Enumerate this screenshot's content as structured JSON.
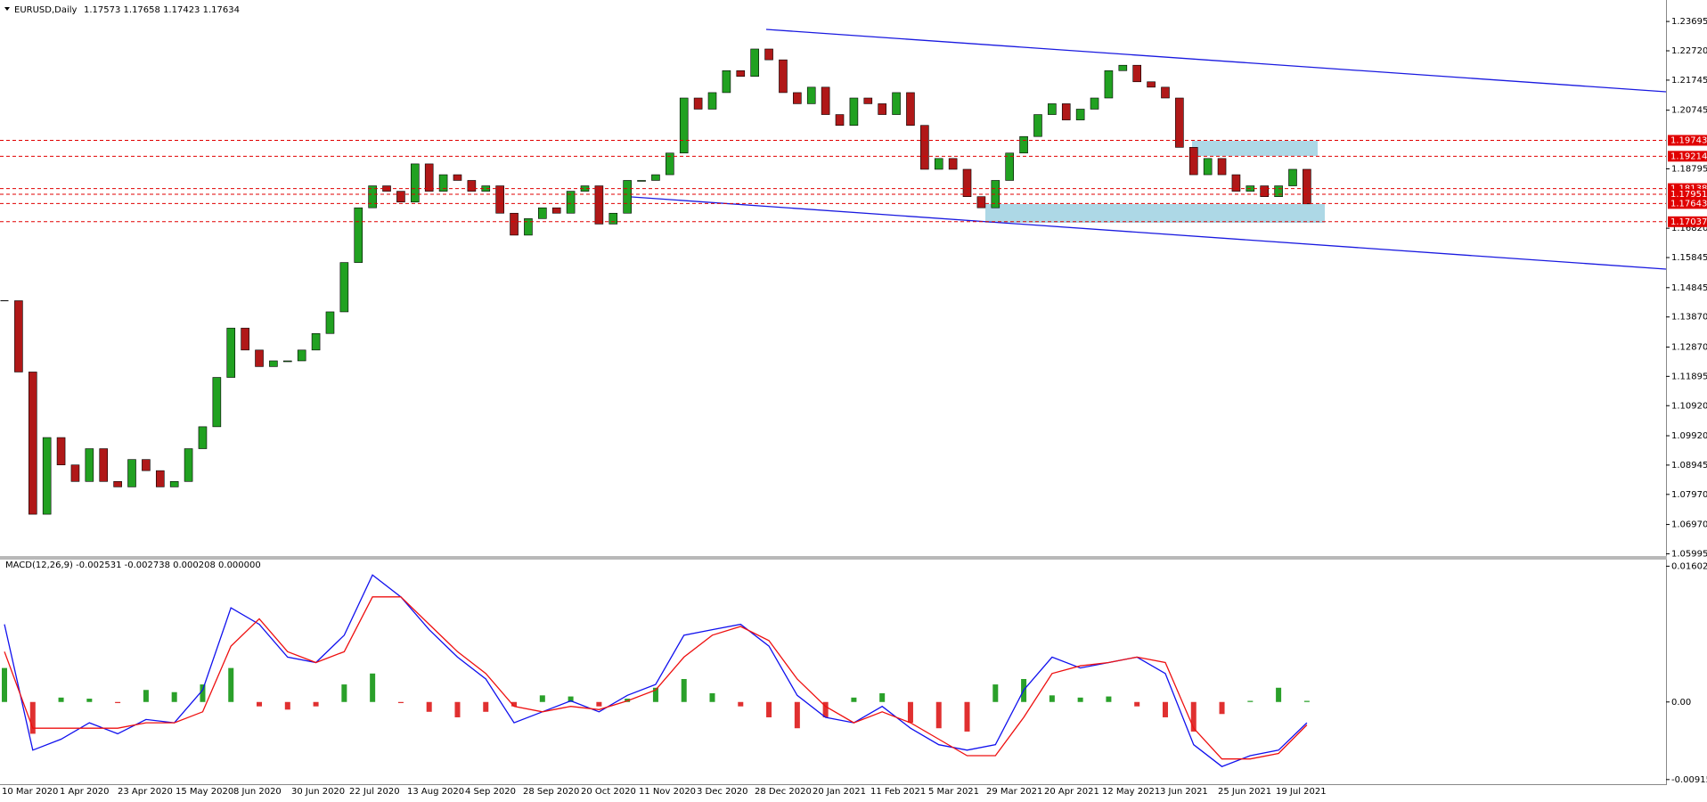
{
  "chart_data": [
    {
      "type": "candlestick",
      "title": "EURUSD,Daily",
      "subtitle": "1.17573 1.17658 1.17423 1.17634",
      "x_axis_labels": [
        "10 Mar 2020",
        "1 Apr 2020",
        "23 Apr 2020",
        "15 May 2020",
        "8 Jun 2020",
        "30 Jun 2020",
        "22 Jul 2020",
        "13 Aug 2020",
        "4 Sep 2020",
        "28 Sep 2020",
        "20 Oct 2020",
        "11 Nov 2020",
        "3 Dec 2020",
        "28 Dec 2020",
        "20 Jan 2021",
        "11 Feb 2021",
        "5 Mar 2021",
        "29 Mar 2021",
        "20 Apr 2021",
        "12 May 2021",
        "3 Jun 2021",
        "25 Jun 2021",
        "19 Jul 2021"
      ],
      "values": [
        1.1441,
        1.1204,
        1.0731,
        1.0986,
        1.0895,
        1.084,
        1.0949,
        1.084,
        1.0822,
        1.0913,
        1.0876,
        1.0822,
        1.084,
        1.0949,
        1.1022,
        1.1186,
        1.135,
        1.1277,
        1.1222,
        1.1241,
        1.1241,
        1.1277,
        1.1332,
        1.1404,
        1.1568,
        1.175,
        1.1823,
        1.1805,
        1.1769,
        1.1896,
        1.1805,
        1.186,
        1.1841,
        1.1805,
        1.1823,
        1.1732,
        1.1659,
        1.1714,
        1.175,
        1.1732,
        1.1805,
        1.1823,
        1.1696,
        1.1732,
        1.1841,
        1.1841,
        1.186,
        1.1932,
        1.2115,
        1.2078,
        1.2133,
        1.2206,
        1.2187,
        1.2278,
        1.2242,
        1.2133,
        1.2096,
        1.2151,
        1.206,
        1.2024,
        1.2115,
        1.2096,
        1.206,
        1.2133,
        1.2024,
        1.1878,
        1.1914,
        1.1878,
        1.1787,
        1.175,
        1.1841,
        1.1932,
        1.1987,
        1.206,
        1.2096,
        1.2042,
        1.2078,
        1.2115,
        1.2206,
        1.2224,
        1.2169,
        1.2151,
        1.2115,
        1.1951,
        1.186,
        1.1914,
        1.186,
        1.1805,
        1.1823,
        1.1787,
        1.1823,
        1.1878,
        1.1763
      ],
      "up_color": "#21a121",
      "down_color": "#b01818",
      "ylim": [
        1.0592,
        1.2435
      ],
      "yticks": [
        1.23695,
        {
          "value": 1.2272,
          "label": "1.22720"
        },
        1.21745,
        1.20745,
        1.18795,
        {
          "value": 1.1682,
          "label": "1.16820"
        },
        1.15845,
        1.14845,
        {
          "value": 1.1387,
          "label": "1.13870"
        },
        {
          "value": 1.1287,
          "label": "1.12870"
        },
        1.11895,
        {
          "value": 1.1092,
          "label": "1.10920"
        },
        {
          "value": 1.0992,
          "label": "1.09920"
        },
        1.08945,
        {
          "value": 1.0797,
          "label": "1.07970"
        },
        {
          "value": 1.0697,
          "label": "1.06970"
        },
        1.05995
      ],
      "levels": [
        1.19743,
        1.19214,
        1.18138,
        1.17951,
        1.17643,
        1.17037
      ],
      "level_color": "#e00000",
      "grid": false
    },
    {
      "type": "macd",
      "title": "MACD(12,26,9) -0.002531 -0.002738 0.000208 0.000000",
      "series": [
        {
          "name": "MACD",
          "color": "#1010ee",
          "values": [
            0.00917,
            -0.00568,
            -0.00439,
            -0.00245,
            -0.00375,
            -0.00207,
            -0.00245,
            0.00142,
            0.01111,
            0.00917,
            0.0053,
            0.00465,
            0.00788,
            0.01499,
            0.0124,
            0.00853,
            0.0053,
            0.00271,
            -0.00245,
            -0.00116,
            0.00013,
            -0.00116,
            0.00078,
            0.00207,
            0.00788,
            0.00853,
            0.00917,
            0.00659,
            0.00078,
            -0.00181,
            -0.00245,
            -0.00052,
            -0.0031,
            -0.00504,
            -0.00568,
            -0.00504,
            0.00142,
            0.0053,
            0.00401,
            0.00465,
            0.0053,
            0.00336,
            -0.00504,
            -0.00762,
            -0.00633,
            -0.00568,
            -0.00245
          ]
        },
        {
          "name": "Signal",
          "color": "#ee1010",
          "values": [
            0.00594,
            -0.0031,
            -0.0031,
            -0.0031,
            -0.0031,
            -0.00245,
            -0.00245,
            -0.00116,
            0.00659,
            0.00982,
            0.00594,
            0.00465,
            0.00594,
            0.0124,
            0.0124,
            0.00917,
            0.00594,
            0.00336,
            -0.00052,
            -0.00116,
            -0.00052,
            -0.0009,
            0.00013,
            0.00142,
            0.0053,
            0.00788,
            0.00891,
            0.00724,
            0.00271,
            -0.00052,
            -0.00245,
            -0.00116,
            -0.00245,
            -0.00439,
            -0.00633,
            -0.00633,
            -0.00181,
            0.00336,
            0.00426,
            0.00465,
            0.0053,
            0.00465,
            -0.0031,
            -0.00672,
            -0.00672,
            -0.00607,
            -0.00271
          ]
        }
      ],
      "histogram": [
        0.00401,
        -0.00375,
        0.00052,
        0.00039,
        -0.00013,
        0.00142,
        0.00116,
        0.00207,
        0.00401,
        -0.00052,
        -0.0009,
        -0.00052,
        0.00207,
        0.00336,
        -0.00013,
        -0.00116,
        -0.00181,
        -0.00116,
        -0.00052,
        0.00078,
        0.00065,
        -0.00052,
        0.00039,
        0.00168,
        0.00271,
        0.00103,
        -0.00052,
        -0.00181,
        -0.0031,
        -0.00181,
        0.00052,
        0.00103,
        -0.00245,
        -0.0031,
        -0.00349,
        0.00207,
        0.00271,
        0.00078,
        0.00052,
        0.00065,
        -0.00052,
        -0.00181,
        -0.00349,
        -0.00142,
        0.00013,
        0.00168,
        0.00013
      ],
      "histogram_up_color": "#2aa02a",
      "histogram_down_color": "#e03030",
      "ylim": [
        -0.0097,
        0.0168
      ],
      "yticks": [
        0.016024,
        {
          "value": 0,
          "label": "0.00"
        },
        -0.009154
      ]
    }
  ]
}
